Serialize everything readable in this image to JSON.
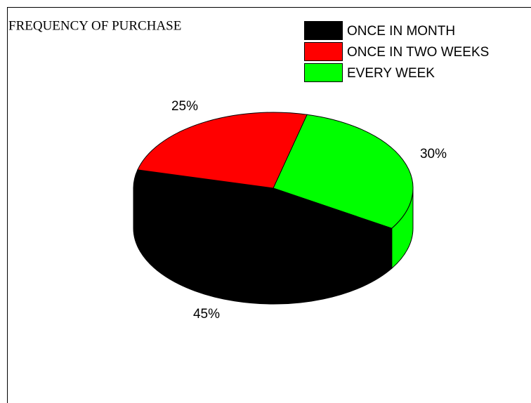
{
  "chart_data": {
    "type": "pie3d",
    "title": "FREQUENCY OF PURCHASE",
    "categories": [
      "ONCE IN MONTH",
      "ONCE IN TWO WEEKS",
      "EVERY WEEK"
    ],
    "values": [
      45,
      25,
      30
    ],
    "value_labels": [
      "45%",
      "25%",
      "30%"
    ],
    "colors": [
      "#000000",
      "#ff0000",
      "#00ff00"
    ],
    "legend": "top-right"
  }
}
